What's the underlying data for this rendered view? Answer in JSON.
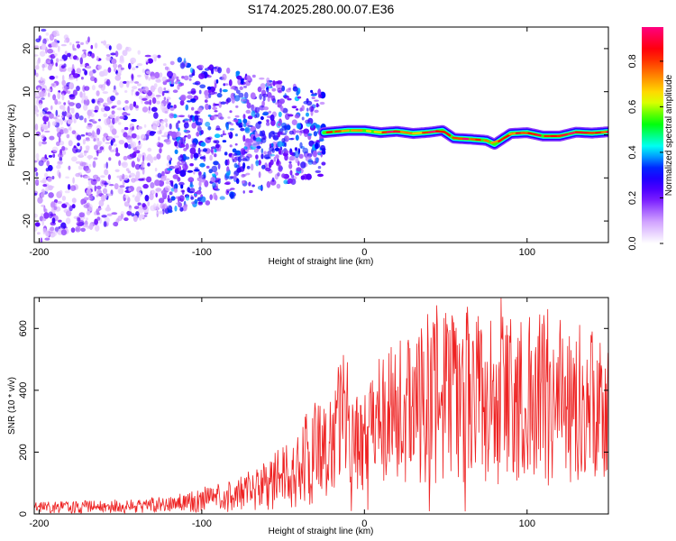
{
  "title": "S174.2025.280.00.07.E36",
  "chart_data": [
    {
      "type": "heatmap",
      "name": "spectrogram",
      "xlabel": "Height of straight line (km)",
      "ylabel": "Frequency (Hz)",
      "xlim": [
        -203,
        150
      ],
      "ylim": [
        -25,
        25
      ],
      "xticks": [
        -200,
        -100,
        0,
        100
      ],
      "xtick_labels": [
        "-200",
        "-100",
        "0",
        "100"
      ],
      "yticks": [
        -20,
        -10,
        0,
        10,
        20
      ],
      "ytick_labels": [
        "-20",
        "-10",
        "0",
        "10",
        "20"
      ],
      "ridge_frequency_hz": {
        "x": [
          -25,
          -10,
          0,
          10,
          20,
          30,
          40,
          48,
          55,
          65,
          75,
          80,
          90,
          100,
          110,
          120,
          130,
          140,
          150
        ],
        "y": [
          0.5,
          1.0,
          1.0,
          0.5,
          0.8,
          0.3,
          0.6,
          1.0,
          -0.8,
          -1.0,
          -1.3,
          -2.2,
          0.3,
          0.5,
          -0.3,
          -0.3,
          0.6,
          0.4,
          0.7
        ]
      },
      "noise_region_x": [
        -203,
        -25
      ],
      "colorbar": {
        "label": "Normalized spectral amplitude",
        "range": [
          0,
          0.95
        ],
        "ticks": [
          0.0,
          0.2,
          0.4,
          0.6,
          0.8
        ],
        "tick_labels": [
          "0.0",
          "0.2",
          "0.4",
          "0.6",
          "0.8"
        ],
        "colors": [
          "#ffffff",
          "#cc99ff",
          "#6600ff",
          "#0000ff",
          "#00ffff",
          "#00ff00",
          "#ffff00",
          "#ff8000",
          "#ff0000",
          "#ff0080"
        ]
      }
    },
    {
      "type": "line",
      "name": "snr",
      "xlabel": "Height of straight line (km)",
      "ylabel": "SNR (10 * v/v)",
      "xlim": [
        -203,
        150
      ],
      "ylim": [
        0,
        700
      ],
      "xticks": [
        -200,
        -100,
        0,
        100
      ],
      "xtick_labels": [
        "-200",
        "-100",
        "0",
        "100"
      ],
      "yticks": [
        0,
        200,
        400,
        600
      ],
      "ytick_labels": [
        "0",
        "200",
        "400",
        "600"
      ],
      "line_color": "#ee2222",
      "envelope": {
        "x": [
          -203,
          -150,
          -120,
          -100,
          -80,
          -60,
          -40,
          -30,
          -20,
          -15,
          -12,
          -5,
          0,
          10,
          20,
          30,
          40,
          50,
          60,
          70,
          80,
          90,
          100,
          110,
          120,
          130,
          140,
          150
        ],
        "y": [
          20,
          25,
          30,
          45,
          60,
          90,
          150,
          200,
          240,
          280,
          300,
          230,
          220,
          280,
          330,
          340,
          350,
          380,
          380,
          370,
          360,
          380,
          370,
          370,
          360,
          360,
          350,
          320
        ]
      },
      "spikes": {
        "x": [
          -16,
          15,
          35,
          50,
          55,
          62,
          70,
          90,
          120,
          140
        ],
        "y": [
          475,
          520,
          600,
          650,
          620,
          700,
          640,
          630,
          580,
          590
        ]
      },
      "zero_dips_x": [
        -8,
        2,
        40,
        62
      ]
    }
  ]
}
